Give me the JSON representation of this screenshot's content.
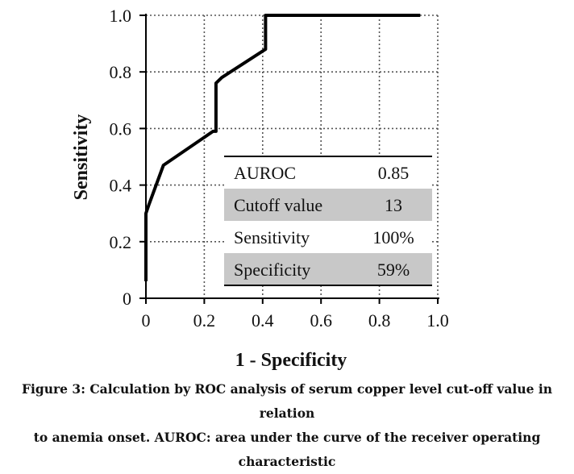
{
  "chart_data": {
    "type": "line",
    "xlabel": "1 - Specificity",
    "ylabel": "Sensitivity",
    "xlim": [
      0,
      1.0
    ],
    "ylim": [
      0,
      1.0
    ],
    "x_ticks": [
      "0",
      "0.2",
      "0.4",
      "0.6",
      "0.8",
      "1.0"
    ],
    "y_ticks": [
      "0",
      "0.2",
      "0.4",
      "0.6",
      "0.8",
      "1.0"
    ],
    "grid": "dotted",
    "series": [
      {
        "points": [
          [
            0.0,
            0.06
          ],
          [
            0.0,
            0.3
          ],
          [
            0.01,
            0.33
          ],
          [
            0.06,
            0.47
          ],
          [
            0.23,
            0.59
          ],
          [
            0.24,
            0.59
          ],
          [
            0.24,
            0.76
          ],
          [
            0.26,
            0.78
          ],
          [
            0.41,
            0.88
          ],
          [
            0.41,
            1.0
          ],
          [
            0.94,
            1.0
          ]
        ]
      }
    ],
    "table": [
      {
        "label": "AUROC",
        "value": "0.85",
        "shaded": false
      },
      {
        "label": "Cutoff value",
        "value": "13",
        "shaded": true
      },
      {
        "label": "Sensitivity",
        "value": "100%",
        "shaded": false
      },
      {
        "label": "Specificity",
        "value": "59%",
        "shaded": true
      }
    ],
    "colors": {
      "line": "#000000",
      "shade": "#c8c8c8",
      "grid": "#555555"
    }
  },
  "caption": {
    "prefix": "Figure 3",
    "lines": [
      ": Calculation by ROC analysis of serum copper level cut-off value in relation",
      "to anemia onset. AUROC: area under the curve of the receiver operating",
      "characteristic"
    ]
  }
}
